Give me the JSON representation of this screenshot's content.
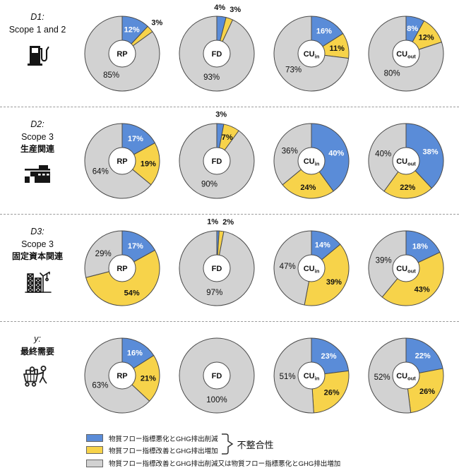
{
  "chart_data": {
    "type": "pie",
    "unit": "%",
    "colors": {
      "blue": "#5A8CD8",
      "yellow": "#F7D34A",
      "gray": "#D2D2D2",
      "stroke": "#4a4a4a"
    },
    "columns": [
      "RP",
      "FD",
      "CUin",
      "CUout"
    ],
    "rows": [
      {
        "id": "D1",
        "label_lines": [
          {
            "text": "D1:",
            "style": "italic"
          },
          {
            "text": "Scope 1 and 2",
            "style": "normal"
          }
        ],
        "icon": "fuel-pump-icon",
        "pies": [
          {
            "center": "RP",
            "sub": "",
            "blue": 12,
            "yellow": 3,
            "gray": 85
          },
          {
            "center": "FD",
            "sub": "",
            "blue": 4,
            "yellow": 3,
            "gray": 93
          },
          {
            "center": "CU",
            "sub": "in",
            "blue": 16,
            "yellow": 11,
            "gray": 73
          },
          {
            "center": "CU",
            "sub": "out",
            "blue": 8,
            "yellow": 12,
            "gray": 80
          }
        ]
      },
      {
        "id": "D2",
        "label_lines": [
          {
            "text": "D2:",
            "style": "italic"
          },
          {
            "text": "Scope 3",
            "style": "normal"
          },
          {
            "text": "生産関連",
            "style": "bold"
          }
        ],
        "icon": "factory-icon",
        "pies": [
          {
            "center": "RP",
            "sub": "",
            "blue": 17,
            "yellow": 19,
            "gray": 64
          },
          {
            "center": "FD",
            "sub": "",
            "blue": 3,
            "yellow": 7,
            "gray": 90
          },
          {
            "center": "CU",
            "sub": "in",
            "blue": 40,
            "yellow": 24,
            "gray": 36
          },
          {
            "center": "CU",
            "sub": "out",
            "blue": 38,
            "yellow": 22,
            "gray": 40
          }
        ]
      },
      {
        "id": "D3",
        "label_lines": [
          {
            "text": "D3:",
            "style": "italic"
          },
          {
            "text": "Scope 3",
            "style": "normal"
          },
          {
            "text": "固定資本関連",
            "style": "bold"
          }
        ],
        "icon": "construction-icon",
        "pies": [
          {
            "center": "RP",
            "sub": "",
            "blue": 17,
            "yellow": 54,
            "gray": 29
          },
          {
            "center": "FD",
            "sub": "",
            "blue": 1,
            "yellow": 2,
            "gray": 97
          },
          {
            "center": "CU",
            "sub": "in",
            "blue": 14,
            "yellow": 39,
            "gray": 47
          },
          {
            "center": "CU",
            "sub": "out",
            "blue": 18,
            "yellow": 43,
            "gray": 39
          }
        ]
      },
      {
        "id": "y",
        "label_lines": [
          {
            "text": "y:",
            "style": "italic"
          },
          {
            "text": "最終需要",
            "style": "bold"
          }
        ],
        "icon": "cart-person-icon",
        "pies": [
          {
            "center": "RP",
            "sub": "",
            "blue": 16,
            "yellow": 21,
            "gray": 63
          },
          {
            "center": "FD",
            "sub": "",
            "blue": 0,
            "yellow": 0,
            "gray": 100
          },
          {
            "center": "CU",
            "sub": "in",
            "blue": 23,
            "yellow": 26,
            "gray": 51
          },
          {
            "center": "CU",
            "sub": "out",
            "blue": 22,
            "yellow": 26,
            "gray": 52
          }
        ]
      }
    ]
  },
  "legend": {
    "items": [
      {
        "color": "blue",
        "label": "物質フロー指標悪化とGHG排出削減"
      },
      {
        "color": "yellow",
        "label": "物質フロー指標改善とGHG排出増加"
      },
      {
        "color": "gray",
        "label": "物質フロー指標改善とGHG排出削減又は物質フロー指標悪化とGHG排出増加"
      }
    ],
    "bracket_label": "不整合性"
  }
}
